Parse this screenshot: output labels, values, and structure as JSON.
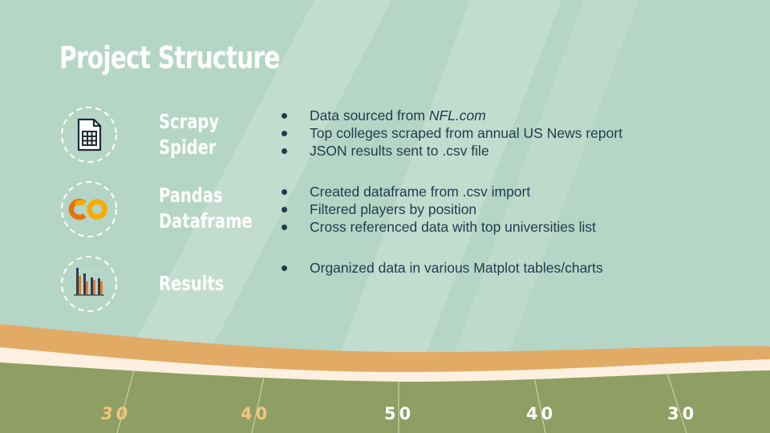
{
  "title": "Project Structure",
  "sections": [
    {
      "icon": "spreadsheet-icon",
      "label_line1": "Scrapy",
      "label_line2": "Spider",
      "bullets": [
        "Data sourced from ",
        "Top colleges scraped from annual US News report",
        "JSON results sent to .csv file"
      ],
      "bullet1_emphasis": "NFL.com"
    },
    {
      "icon": "colab-logo-icon",
      "label_line1": "Pandas",
      "label_line2": "Dataframe",
      "bullets": [
        "Created dataframe from .csv import",
        "Filtered players by position",
        "Cross referenced data with top universities list"
      ]
    },
    {
      "icon": "bar-chart-icon",
      "label_line1": "Results",
      "bullets": [
        "Organized data in various Matplot tables/charts"
      ]
    }
  ],
  "field": {
    "yard_numbers": [
      "30",
      "40",
      "50",
      "40",
      "30"
    ]
  },
  "colors": {
    "background": "#b5d6c6",
    "stripe": "#c3ddd0",
    "turf": "#8f9f63",
    "track": "#e2ab65",
    "cream": "#fdf0e0",
    "text_dark": "#243a4c",
    "yard_orange": "#f4c47c"
  }
}
